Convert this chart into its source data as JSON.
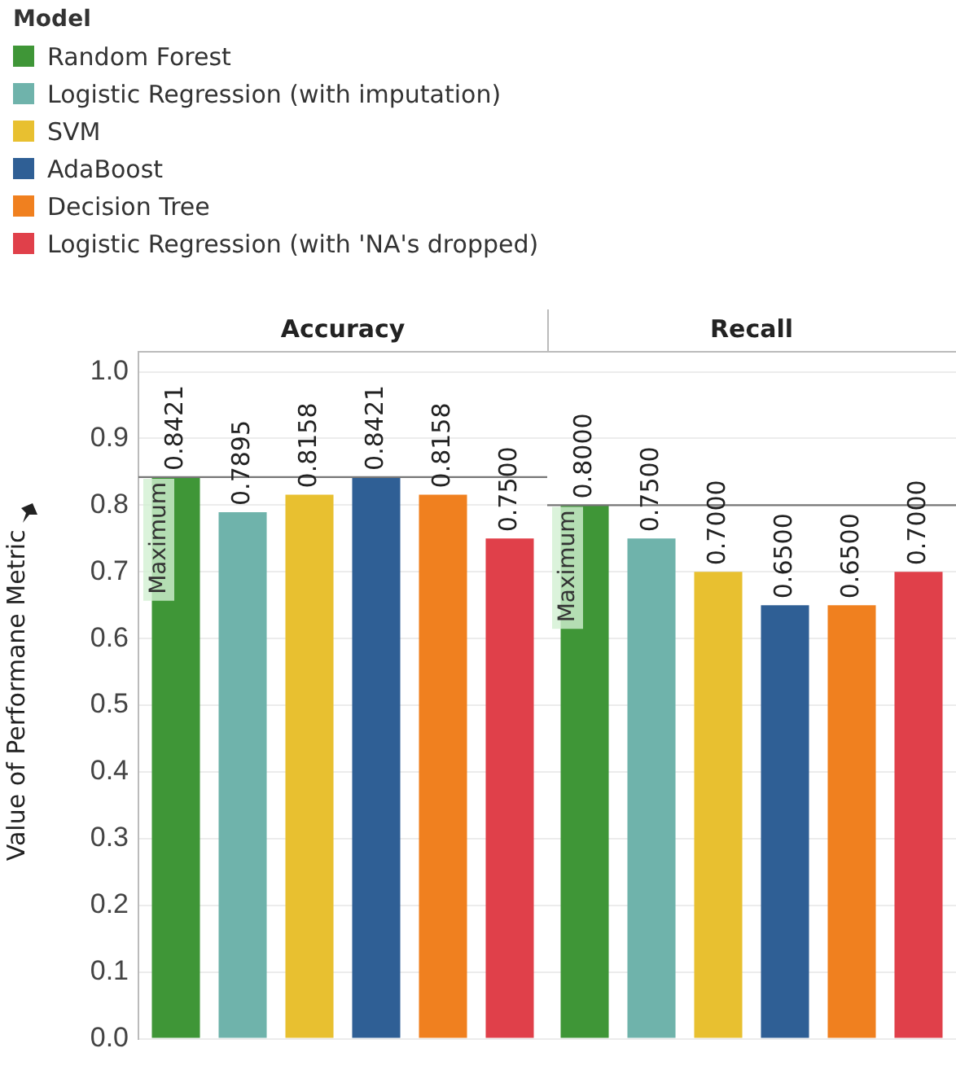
{
  "chart_data": {
    "type": "bar",
    "ylabel": "Value of Performane Metric",
    "legend_title": "Model",
    "categories": [
      "Accuracy",
      "Recall"
    ],
    "series": [
      {
        "name": "Random Forest",
        "color": "#3f9637",
        "values": [
          0.8421,
          0.8
        ],
        "value_labels": [
          "0.8421",
          "0.8000"
        ]
      },
      {
        "name": "Logistic Regression (with imputation)",
        "color": "#6fb3ab",
        "values": [
          0.7895,
          0.75
        ],
        "value_labels": [
          "0.7895",
          "0.7500"
        ]
      },
      {
        "name": "SVM",
        "color": "#e8c030",
        "values": [
          0.8158,
          0.7
        ],
        "value_labels": [
          "0.8158",
          "0.7000"
        ]
      },
      {
        "name": "AdaBoost",
        "color": "#2f5f95",
        "values": [
          0.8421,
          0.65
        ],
        "value_labels": [
          "0.8421",
          "0.6500"
        ]
      },
      {
        "name": "Decision Tree",
        "color": "#f0801f",
        "values": [
          0.8158,
          0.65
        ],
        "value_labels": [
          "0.8158",
          "0.6500"
        ]
      },
      {
        "name": "Logistic Regression (with 'NA's dropped)",
        "color": "#e0404a",
        "values": [
          0.75,
          0.7
        ],
        "value_labels": [
          "0.7500",
          "0.7000"
        ]
      }
    ],
    "ylim": [
      0,
      1.03
    ],
    "yticks": [
      {
        "value": 0,
        "label": "0.0"
      },
      0.1,
      0.2,
      0.3,
      0.4,
      0.5,
      0.6,
      0.7,
      0.8,
      0.9,
      {
        "value": 1,
        "label": "1.0"
      }
    ],
    "grid": "y",
    "legend": "top left",
    "ref_lines": [
      {
        "axis": "y",
        "value": 0.8421,
        "label": "Maximum"
      },
      {
        "axis": "y",
        "value": 0.8,
        "label": "Maximum"
      }
    ]
  }
}
